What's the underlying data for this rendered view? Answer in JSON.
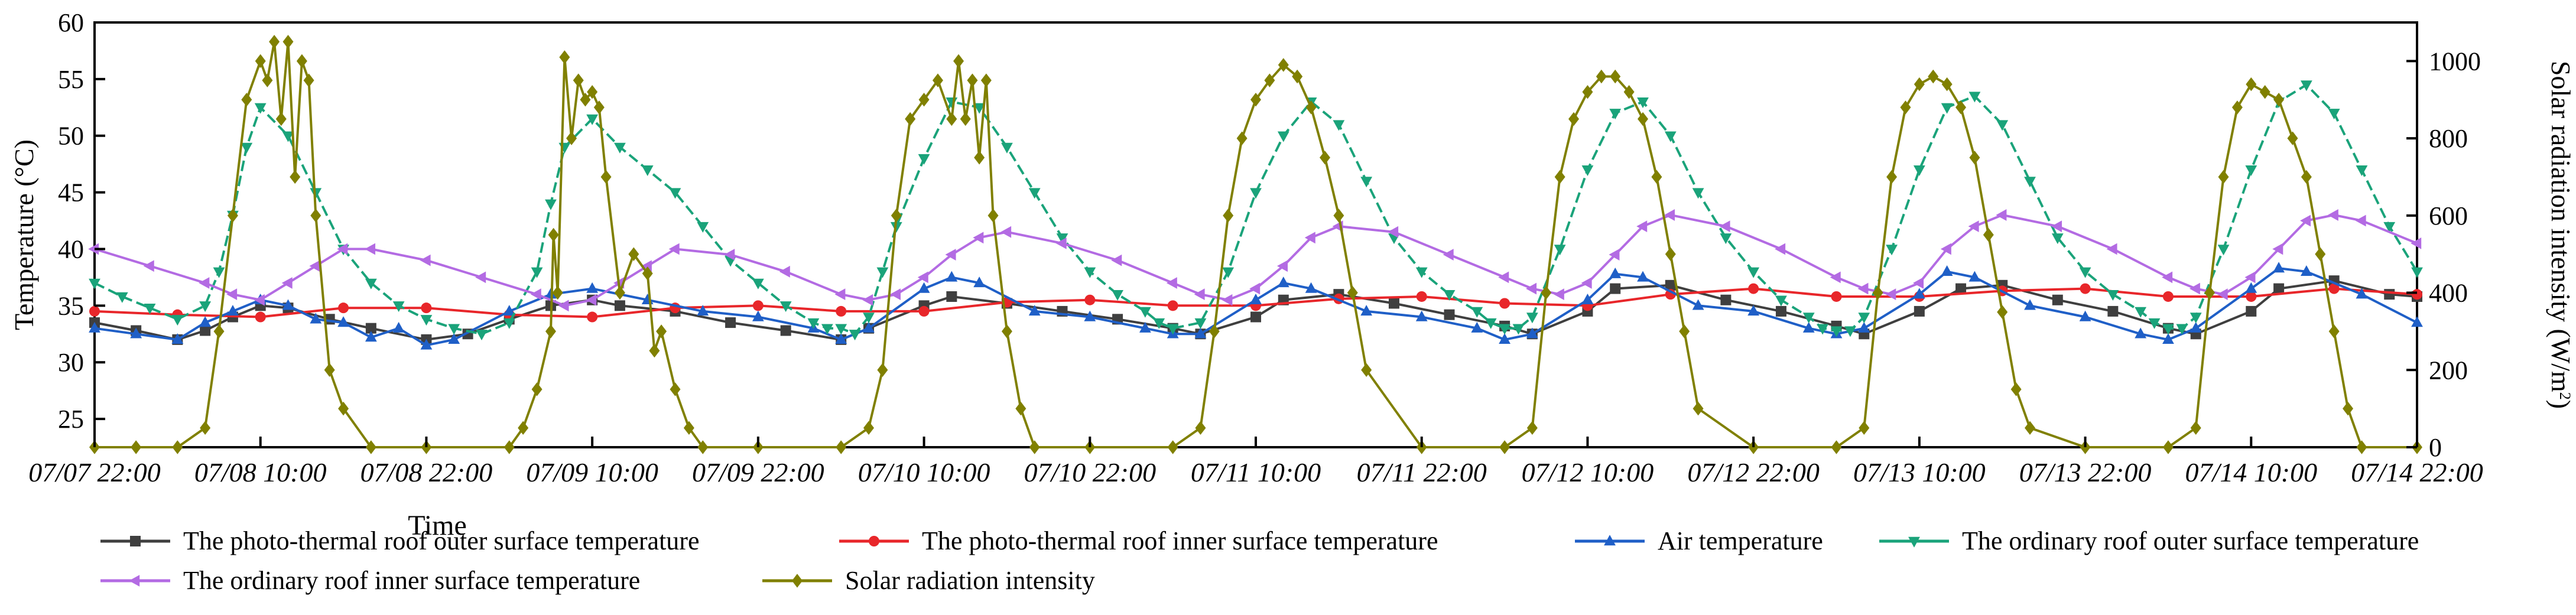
{
  "chart_data": {
    "type": "line",
    "title": "",
    "xlabel": "Time",
    "ylabel_left": "Temperature (°C)",
    "ylabel_right": "Solar radiation intensity (W/m²)",
    "ylabel_right_parts": {
      "main": "Solar radiation intensity (W/m",
      "sup": "2",
      "close": ")"
    },
    "ylim_left": [
      22.5,
      60
    ],
    "ylim_right": [
      0,
      1100
    ],
    "yticks_left": [
      25,
      30,
      35,
      40,
      45,
      50,
      55,
      60
    ],
    "yticks_right": [
      0,
      200,
      400,
      600,
      800,
      1000
    ],
    "x_range_hours": [
      0,
      168
    ],
    "x_ticks": [
      {
        "hour": 0,
        "label": "07/07 22:00"
      },
      {
        "hour": 12,
        "label": "07/08 10:00"
      },
      {
        "hour": 24,
        "label": "07/08 22:00"
      },
      {
        "hour": 36,
        "label": "07/09 10:00"
      },
      {
        "hour": 48,
        "label": "07/09 22:00"
      },
      {
        "hour": 60,
        "label": "07/10 10:00"
      },
      {
        "hour": 72,
        "label": "07/10 22:00"
      },
      {
        "hour": 84,
        "label": "07/11 10:00"
      },
      {
        "hour": 96,
        "label": "07/11 22:00"
      },
      {
        "hour": 108,
        "label": "07/12 10:00"
      },
      {
        "hour": 120,
        "label": "07/12 22:00"
      },
      {
        "hour": 132,
        "label": "07/13 10:00"
      },
      {
        "hour": 144,
        "label": "07/13 22:00"
      },
      {
        "hour": 156,
        "label": "07/14 10:00"
      },
      {
        "hour": 168,
        "label": "07/14 22:00"
      }
    ],
    "legend_location": "bottom",
    "series": [
      {
        "name": "The photo-thermal roof outer surface temperature",
        "color": "#3f3f3f",
        "marker": "square",
        "axis": "left",
        "x": [
          0,
          3,
          6,
          8,
          10,
          12,
          14,
          17,
          20,
          24,
          27,
          30,
          33,
          36,
          38,
          42,
          46,
          50,
          54,
          56,
          60,
          62,
          66,
          70,
          74,
          78,
          80,
          84,
          86,
          90,
          94,
          98,
          102,
          104,
          108,
          110,
          114,
          118,
          122,
          126,
          128,
          132,
          135,
          138,
          142,
          146,
          150,
          152,
          156,
          158,
          162,
          166,
          168
        ],
        "values": [
          33.5,
          32.8,
          32.0,
          32.8,
          34.0,
          35.0,
          34.8,
          33.8,
          33.0,
          32.0,
          32.5,
          33.8,
          35.0,
          35.5,
          35.0,
          34.5,
          33.5,
          32.8,
          32.0,
          33.0,
          35.0,
          35.8,
          35.2,
          34.5,
          33.8,
          33.0,
          32.5,
          34.0,
          35.5,
          36.0,
          35.2,
          34.2,
          33.2,
          32.5,
          34.5,
          36.5,
          36.8,
          35.5,
          34.5,
          33.2,
          32.5,
          34.5,
          36.5,
          36.8,
          35.5,
          34.5,
          33.0,
          32.5,
          34.5,
          36.5,
          37.2,
          36.0,
          35.8
        ]
      },
      {
        "name": "The photo-thermal roof inner surface temperature",
        "color": "#e8262a",
        "marker": "circle",
        "axis": "left",
        "x": [
          0,
          6,
          12,
          18,
          24,
          30,
          36,
          42,
          48,
          54,
          60,
          66,
          72,
          78,
          84,
          90,
          96,
          102,
          108,
          114,
          120,
          126,
          132,
          138,
          144,
          150,
          156,
          162,
          168
        ],
        "values": [
          34.5,
          34.2,
          34.0,
          34.8,
          34.8,
          34.2,
          34.0,
          34.8,
          35.0,
          34.5,
          34.5,
          35.3,
          35.5,
          35.0,
          35.0,
          35.6,
          35.8,
          35.2,
          35.0,
          36.0,
          36.5,
          35.8,
          35.8,
          36.3,
          36.5,
          35.8,
          35.8,
          36.5,
          36.0
        ]
      },
      {
        "name": "Air temperature",
        "color": "#1f5fc7",
        "marker": "triangle-up",
        "axis": "left",
        "x": [
          0,
          3,
          6,
          8,
          10,
          12,
          14,
          16,
          18,
          20,
          22,
          24,
          26,
          30,
          33,
          36,
          40,
          44,
          48,
          52,
          54,
          56,
          60,
          62,
          64,
          68,
          72,
          76,
          78,
          80,
          84,
          86,
          88,
          92,
          96,
          100,
          102,
          104,
          108,
          110,
          112,
          116,
          120,
          124,
          126,
          128,
          132,
          134,
          136,
          140,
          144,
          148,
          150,
          152,
          156,
          158,
          160,
          164,
          168
        ],
        "values": [
          33.0,
          32.5,
          32.0,
          33.5,
          34.5,
          35.5,
          35.0,
          33.8,
          33.5,
          32.2,
          33.0,
          31.5,
          32.0,
          34.5,
          36.0,
          36.5,
          35.5,
          34.5,
          34.0,
          33.0,
          32.0,
          33.0,
          36.5,
          37.5,
          37.0,
          34.5,
          34.0,
          33.0,
          32.5,
          32.5,
          35.5,
          37.0,
          36.5,
          34.5,
          34.0,
          33.0,
          32.0,
          32.5,
          35.5,
          37.8,
          37.5,
          35.0,
          34.5,
          33.0,
          32.5,
          33.0,
          36.0,
          38.0,
          37.5,
          35.0,
          34.0,
          32.5,
          32.0,
          33.0,
          36.5,
          38.3,
          38.0,
          36.0,
          33.5
        ]
      },
      {
        "name": "The ordinary roof outer surface temperature",
        "color": "#1aa37a",
        "marker": "triangle-down",
        "axis": "left",
        "x": [
          0,
          2,
          4,
          6,
          8,
          9,
          10,
          11,
          12,
          14,
          16,
          18,
          20,
          22,
          24,
          26,
          28,
          30,
          32,
          33,
          34,
          36,
          38,
          40,
          42,
          44,
          46,
          48,
          50,
          52,
          53,
          54,
          55,
          56,
          57,
          58,
          60,
          62,
          64,
          66,
          68,
          70,
          72,
          74,
          76,
          77,
          78,
          80,
          82,
          84,
          86,
          88,
          90,
          92,
          94,
          96,
          98,
          100,
          101,
          102,
          103,
          104,
          106,
          108,
          110,
          112,
          114,
          116,
          118,
          120,
          122,
          124,
          125,
          126,
          127,
          128,
          130,
          132,
          134,
          136,
          138,
          140,
          142,
          144,
          146,
          148,
          149,
          150,
          151,
          152,
          154,
          156,
          158,
          160,
          162,
          164,
          166,
          168
        ],
        "values": [
          37.0,
          35.8,
          34.8,
          33.8,
          35.0,
          38.0,
          43.0,
          49.0,
          52.5,
          50.0,
          45.0,
          40.0,
          37.0,
          35.0,
          33.8,
          33.0,
          32.5,
          33.5,
          38.0,
          44.0,
          49.0,
          51.5,
          49.0,
          47.0,
          45.0,
          42.0,
          39.0,
          37.0,
          35.0,
          33.5,
          33.0,
          33.0,
          32.5,
          34.0,
          38.0,
          42.0,
          48.0,
          53.0,
          52.5,
          49.0,
          45.0,
          41.0,
          38.0,
          36.0,
          34.5,
          33.5,
          33.0,
          33.5,
          38.0,
          45.0,
          50.0,
          53.0,
          51.0,
          46.0,
          41.0,
          38.0,
          36.0,
          34.5,
          33.5,
          33.0,
          33.0,
          34.0,
          40.0,
          47.0,
          52.0,
          53.0,
          50.0,
          45.0,
          41.0,
          38.0,
          35.5,
          34.0,
          33.0,
          32.8,
          32.8,
          34.0,
          40.0,
          47.0,
          52.5,
          53.5,
          51.0,
          46.0,
          41.0,
          38.0,
          36.0,
          34.5,
          33.5,
          33.0,
          33.0,
          34.0,
          40.0,
          47.0,
          53.0,
          54.5,
          52.0,
          47.0,
          42.0,
          38.0
        ]
      },
      {
        "name": "The ordinary roof inner surface temperature",
        "color": "#b36be3",
        "marker": "triangle-left",
        "axis": "left",
        "x": [
          0,
          4,
          8,
          10,
          12,
          14,
          16,
          18,
          20,
          24,
          28,
          32,
          34,
          36,
          38,
          40,
          42,
          46,
          50,
          54,
          56,
          58,
          60,
          62,
          64,
          66,
          70,
          74,
          78,
          80,
          82,
          84,
          86,
          88,
          90,
          94,
          98,
          102,
          104,
          106,
          108,
          110,
          112,
          114,
          118,
          122,
          126,
          128,
          130,
          132,
          134,
          136,
          138,
          142,
          146,
          150,
          152,
          154,
          156,
          158,
          160,
          162,
          164,
          168
        ],
        "values": [
          40.0,
          38.5,
          37.0,
          36.0,
          35.5,
          37.0,
          38.5,
          40.0,
          40.0,
          39.0,
          37.5,
          36.0,
          35.0,
          35.5,
          37.0,
          38.5,
          40.0,
          39.5,
          38.0,
          36.0,
          35.5,
          36.0,
          37.5,
          39.5,
          41.0,
          41.5,
          40.5,
          39.0,
          37.0,
          36.0,
          35.5,
          36.5,
          38.5,
          41.0,
          42.0,
          41.5,
          39.5,
          37.5,
          36.5,
          36.0,
          37.0,
          39.5,
          42.0,
          43.0,
          42.0,
          40.0,
          37.5,
          36.5,
          36.0,
          37.0,
          40.0,
          42.0,
          43.0,
          42.0,
          40.0,
          37.5,
          36.5,
          36.0,
          37.5,
          40.0,
          42.5,
          43.0,
          42.5,
          40.5
        ]
      },
      {
        "name": "Solar radiation intensity",
        "color": "#808000",
        "marker": "diamond",
        "axis": "right",
        "x": [
          0,
          3,
          6,
          8,
          9,
          10,
          11,
          12,
          12.5,
          13,
          13.5,
          14,
          14.5,
          15,
          15.5,
          16,
          17,
          18,
          20,
          24,
          30,
          31,
          32,
          33,
          33.2,
          33.5,
          34,
          34.5,
          35,
          35.5,
          36,
          36.5,
          37,
          38,
          39,
          40,
          40.5,
          41,
          42,
          43,
          44,
          48,
          54,
          56,
          57,
          58,
          59,
          60,
          61,
          62,
          62.5,
          63,
          63.5,
          64,
          64.5,
          65,
          66,
          67,
          68,
          72,
          78,
          80,
          81,
          82,
          83,
          84,
          85,
          86,
          87,
          88,
          89,
          90,
          91,
          92,
          96,
          102,
          104,
          105,
          106,
          107,
          108,
          109,
          110,
          111,
          112,
          113,
          114,
          115,
          116,
          120,
          126,
          128,
          129,
          130,
          131,
          132,
          133,
          134,
          135,
          136,
          137,
          138,
          139,
          140,
          144,
          150,
          152,
          153,
          154,
          155,
          156,
          157,
          158,
          159,
          160,
          161,
          162,
          163,
          164,
          168
        ],
        "values": [
          0,
          0,
          0,
          50,
          300,
          600,
          900,
          1000,
          950,
          1050,
          850,
          1050,
          700,
          1000,
          950,
          600,
          200,
          100,
          0,
          0,
          0,
          50,
          150,
          300,
          550,
          400,
          1010,
          800,
          950,
          900,
          920,
          880,
          700,
          400,
          500,
          450,
          250,
          300,
          150,
          50,
          0,
          0,
          0,
          50,
          200,
          600,
          850,
          900,
          950,
          850,
          1000,
          850,
          950,
          750,
          950,
          600,
          300,
          100,
          0,
          0,
          0,
          50,
          300,
          600,
          800,
          900,
          950,
          990,
          960,
          880,
          750,
          600,
          400,
          200,
          0,
          0,
          50,
          400,
          700,
          850,
          920,
          960,
          960,
          920,
          850,
          700,
          500,
          300,
          100,
          0,
          0,
          50,
          400,
          700,
          880,
          940,
          960,
          940,
          880,
          750,
          550,
          350,
          150,
          50,
          0,
          0,
          50,
          400,
          700,
          880,
          940,
          920,
          900,
          800,
          700,
          500,
          300,
          100,
          0,
          0
        ]
      }
    ]
  }
}
